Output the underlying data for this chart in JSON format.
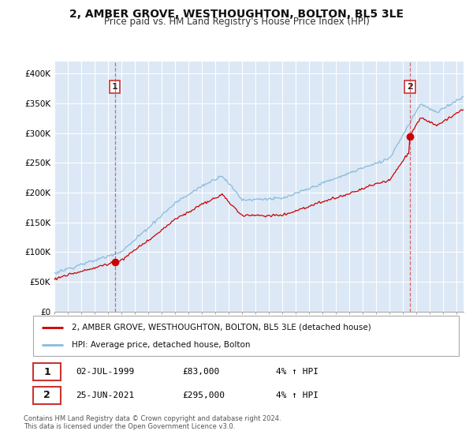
{
  "title": "2, AMBER GROVE, WESTHOUGHTON, BOLTON, BL5 3LE",
  "subtitle": "Price paid vs. HM Land Registry's House Price Index (HPI)",
  "legend_label_red": "2, AMBER GROVE, WESTHOUGHTON, BOLTON, BL5 3LE (detached house)",
  "legend_label_blue": "HPI: Average price, detached house, Bolton",
  "sale1_date": "02-JUL-1999",
  "sale1_price": "£83,000",
  "sale1_hpi": "4% ↑ HPI",
  "sale1_x": 1999.5,
  "sale1_y": 83000,
  "sale2_date": "25-JUN-2021",
  "sale2_price": "£295,000",
  "sale2_hpi": "4% ↑ HPI",
  "sale2_x": 2021.5,
  "sale2_y": 295000,
  "footnote1": "Contains HM Land Registry data © Crown copyright and database right 2024.",
  "footnote2": "This data is licensed under the Open Government Licence v3.0.",
  "xmin": 1995.0,
  "xmax": 2025.5,
  "ymin": 0,
  "ymax": 420000,
  "yticks": [
    0,
    50000,
    100000,
    150000,
    200000,
    250000,
    300000,
    350000,
    400000
  ],
  "ytick_labels": [
    "£0",
    "£50K",
    "£100K",
    "£150K",
    "£200K",
    "£250K",
    "£300K",
    "£350K",
    "£400K"
  ],
  "plot_bg_color": "#dce8f5",
  "red_color": "#cc0000",
  "blue_color": "#88bbdd",
  "grid_color": "#ffffff",
  "sale_marker_color": "#cc0000",
  "vline_color": "#dd4444"
}
